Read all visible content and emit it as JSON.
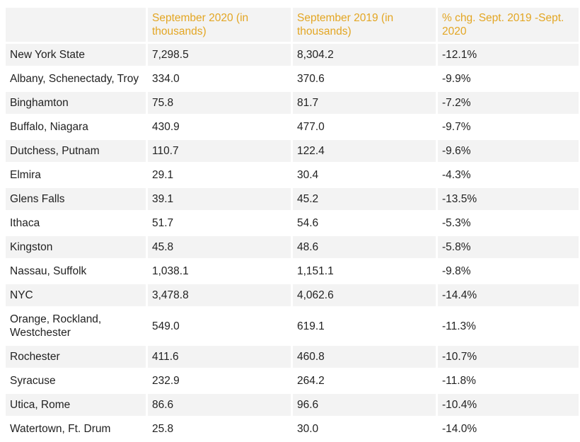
{
  "headers": {
    "area": "",
    "sep2020": "September 2020 (in thousands)",
    "sep2019": "September 2019 (in thousands)",
    "pct_change": "% chg. Sept. 2019 -Sept. 2020"
  },
  "rows": [
    {
      "area": "New York State",
      "sep2020": "7,298.5",
      "sep2019": "8,304.2",
      "chg": "-12.1%"
    },
    {
      "area": "Albany, Schenectady, Troy",
      "sep2020": "334.0",
      "sep2019": "370.6",
      "chg": "-9.9%"
    },
    {
      "area": "Binghamton",
      "sep2020": "75.8",
      "sep2019": "81.7",
      "chg": "-7.2%"
    },
    {
      "area": "Buffalo, Niagara",
      "sep2020": "430.9",
      "sep2019": "477.0",
      "chg": "-9.7%"
    },
    {
      "area": "Dutchess, Putnam",
      "sep2020": "110.7",
      "sep2019": "122.4",
      "chg": "-9.6%"
    },
    {
      "area": "Elmira",
      "sep2020": "29.1",
      "sep2019": "30.4",
      "chg": "-4.3%"
    },
    {
      "area": "Glens Falls",
      "sep2020": "39.1",
      "sep2019": "45.2",
      "chg": "-13.5%"
    },
    {
      "area": "Ithaca",
      "sep2020": "51.7",
      "sep2019": "54.6",
      "chg": "-5.3%"
    },
    {
      "area": "Kingston",
      "sep2020": "45.8",
      "sep2019": "48.6",
      "chg": "-5.8%"
    },
    {
      "area": "Nassau, Suffolk",
      "sep2020": "1,038.1",
      "sep2019": "1,151.1",
      "chg": "-9.8%"
    },
    {
      "area": "NYC",
      "sep2020": "3,478.8",
      "sep2019": "4,062.6",
      "chg": "-14.4%"
    },
    {
      "area": "Orange, Rockland, Westchester",
      "sep2020": "549.0",
      "sep2019": "619.1",
      "chg": "-11.3%"
    },
    {
      "area": "Rochester",
      "sep2020": "411.6",
      "sep2019": "460.8",
      "chg": "-10.7%"
    },
    {
      "area": "Syracuse",
      "sep2020": "232.9",
      "sep2019": "264.2",
      "chg": "-11.8%"
    },
    {
      "area": "Utica, Rome",
      "sep2020": "86.6",
      "sep2019": "96.6",
      "chg": "-10.4%"
    },
    {
      "area": "Watertown, Ft. Drum",
      "sep2020": "25.8",
      "sep2019": "30.0",
      "chg": "-14.0%"
    }
  ],
  "colors": {
    "header_text": "#e3a623",
    "row_shade": "#f3f3f3",
    "body_text": "#222222"
  }
}
